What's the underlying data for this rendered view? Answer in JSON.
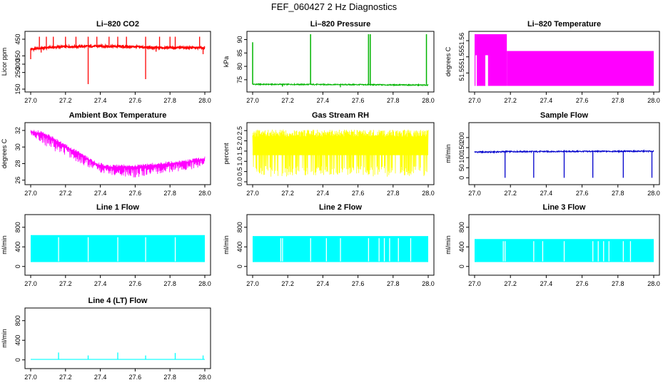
{
  "page": {
    "title": "FEF_060427  2 Hz Diagnostics"
  },
  "chart_data": [
    {
      "id": "co2",
      "type": "line",
      "title": "Li–820 CO2",
      "ylabel": "Licor ppm",
      "color": "#ff0000",
      "xlim": [
        27.0,
        28.0
      ],
      "ylim": [
        150,
        480
      ],
      "yticks": [
        150,
        250,
        300,
        350,
        450
      ],
      "ytick_labels": [
        "150",
        "250",
        "300",
        "350",
        "450"
      ],
      "xticks": [
        27.0,
        27.2,
        27.4,
        27.6,
        27.8,
        28.0
      ],
      "xtick_labels": [
        "27.0",
        "27.2",
        "27.4",
        "27.6",
        "27.8",
        "28.0"
      ],
      "series": [
        {
          "baseline": [
            [
              27.0,
              390
            ],
            [
              27.1,
              400
            ],
            [
              27.2,
              405
            ],
            [
              27.4,
              408
            ],
            [
              27.6,
              405
            ],
            [
              27.7,
              398
            ],
            [
              27.8,
              400
            ],
            [
              28.0,
              398
            ]
          ],
          "noise": 6,
          "spikes": [
            [
              27.05,
              465
            ],
            [
              27.09,
              465
            ],
            [
              27.13,
              465
            ],
            [
              27.2,
              465
            ],
            [
              27.26,
              465
            ],
            [
              27.33,
              465
            ],
            [
              27.38,
              465
            ],
            [
              27.45,
              465
            ],
            [
              27.5,
              465
            ],
            [
              27.55,
              465
            ],
            [
              27.66,
              465
            ],
            [
              27.74,
              465
            ],
            [
              27.8,
              465
            ],
            [
              27.83,
              465
            ],
            [
              27.97,
              465
            ]
          ],
          "dips": [
            [
              27.0,
              330
            ],
            [
              27.06,
              370
            ],
            [
              27.33,
              180
            ],
            [
              27.66,
              210
            ],
            [
              27.72,
              375
            ],
            [
              27.99,
              360
            ]
          ]
        }
      ]
    },
    {
      "id": "pressure",
      "type": "line",
      "title": "Li–820 Pressure",
      "ylabel": "kPa",
      "color": "#00b400",
      "xlim": [
        27.0,
        28.0
      ],
      "ylim": [
        71.5,
        92
      ],
      "yticks": [
        75,
        80,
        85,
        90
      ],
      "ytick_labels": [
        "75",
        "80",
        "85",
        "90"
      ],
      "xticks": [
        27.0,
        27.2,
        27.4,
        27.6,
        27.8,
        28.0
      ],
      "xtick_labels": [
        "27.0",
        "27.2",
        "27.4",
        "27.6",
        "27.8",
        "28.0"
      ],
      "series": [
        {
          "baseline": [
            [
              27.0,
              73.3
            ],
            [
              27.5,
              73.2
            ],
            [
              28.0,
              73.0
            ]
          ],
          "noise": 0.2,
          "spikes": [
            [
              27.0,
              89
            ],
            [
              27.33,
              92
            ],
            [
              27.66,
              92
            ],
            [
              27.67,
              92
            ],
            [
              27.99,
              92
            ]
          ],
          "dips": [
            [
              27.17,
              72.4
            ],
            [
              27.5,
              72.2
            ]
          ]
        }
      ]
    },
    {
      "id": "li820_temperature",
      "type": "area",
      "title": "Li–820 Temperature",
      "ylabel": "degrees C",
      "color": "#ff00ff",
      "xlim": [
        27.0,
        28.0
      ],
      "ylim": [
        51.545,
        51.562
      ],
      "yticks": [
        51.55,
        51.555,
        51.56
      ],
      "ytick_labels": [
        "51.55",
        "51.55",
        "51.56"
      ],
      "xticks": [
        27.0,
        27.2,
        27.4,
        27.6,
        27.8,
        28.0
      ],
      "xtick_labels": [
        "27.0",
        "27.2",
        "27.4",
        "27.6",
        "27.8",
        "28.0"
      ],
      "series": [
        {
          "blocks": [
            {
              "x0": 27.0,
              "x1": 27.18,
              "y0": 51.546,
              "y1": 51.562
            },
            {
              "x0": 27.18,
              "x1": 28.0,
              "y0": 51.546,
              "y1": 51.5568
            }
          ],
          "gaps": [
            [
              27.005,
              27.012
            ],
            [
              27.06,
              27.075
            ]
          ]
        }
      ]
    },
    {
      "id": "box_temperature",
      "type": "line",
      "title": "Ambient Box Temperature",
      "ylabel": "degrees C",
      "color": "#ff00ff",
      "xlim": [
        27.0,
        28.0
      ],
      "ylim": [
        25.8,
        32.6
      ],
      "yticks": [
        26,
        28,
        30,
        32
      ],
      "ytick_labels": [
        "26",
        "28",
        "30",
        "32"
      ],
      "xticks": [
        27.0,
        27.2,
        27.4,
        27.6,
        27.8,
        28.0
      ],
      "xtick_labels": [
        "27.0",
        "27.2",
        "27.4",
        "27.6",
        "27.8",
        "28.0"
      ],
      "series": [
        {
          "upper": [
            [
              27.0,
              32.1
            ],
            [
              27.06,
              32.0
            ],
            [
              27.1,
              31.6
            ],
            [
              27.2,
              30.4
            ],
            [
              27.3,
              29.2
            ],
            [
              27.38,
              28.2
            ],
            [
              27.45,
              27.9
            ],
            [
              27.6,
              27.9
            ],
            [
              27.7,
              28.1
            ],
            [
              27.8,
              28.3
            ],
            [
              27.9,
              28.5
            ],
            [
              28.0,
              28.9
            ]
          ],
          "lower": [
            [
              27.0,
              31.2
            ],
            [
              27.06,
              30.5
            ],
            [
              27.1,
              29.8
            ],
            [
              27.2,
              29.0
            ],
            [
              27.3,
              27.8
            ],
            [
              27.38,
              27.0
            ],
            [
              27.45,
              26.6
            ],
            [
              27.6,
              26.2
            ],
            [
              27.7,
              26.6
            ],
            [
              27.8,
              26.8
            ],
            [
              27.9,
              27.2
            ],
            [
              28.0,
              27.6
            ]
          ]
        }
      ]
    },
    {
      "id": "gas_rh",
      "type": "line",
      "title": "Gas Stream RH",
      "ylabel": "percent",
      "color": "#ffff00",
      "xlim": [
        27.0,
        28.0
      ],
      "ylim": [
        0,
        2.75
      ],
      "yticks": [
        0.0,
        0.5,
        1.0,
        1.5,
        2.0,
        2.5
      ],
      "ytick_labels": [
        "0.0",
        "0.5",
        "1.0",
        "1.5",
        "2.0",
        "2.5"
      ],
      "xticks": [
        27.0,
        27.2,
        27.4,
        27.6,
        27.8,
        28.0
      ],
      "xtick_labels": [
        "27.0",
        "27.2",
        "27.4",
        "27.6",
        "27.8",
        "28.0"
      ],
      "series": [
        {
          "band_top": 2.55,
          "band_bottom": 0.25,
          "core_top": 2.2,
          "core_bottom": 1.3
        }
      ]
    },
    {
      "id": "sample_flow",
      "type": "line",
      "title": "Sample Flow",
      "ylabel": "ml/min",
      "color": "#0000cc",
      "xlim": [
        27.0,
        28.0
      ],
      "ylim": [
        -20,
        260
      ],
      "yticks": [
        0,
        50,
        100,
        150,
        200
      ],
      "ytick_labels": [
        "0",
        "50",
        "100",
        "150",
        "200"
      ],
      "xticks": [
        27.0,
        27.2,
        27.4,
        27.6,
        27.8,
        28.0
      ],
      "xtick_labels": [
        "27.0",
        "27.2",
        "27.4",
        "27.6",
        "27.8",
        "28.0"
      ],
      "series": [
        {
          "baseline": [
            [
              27.0,
              128
            ],
            [
              27.1,
              128
            ],
            [
              27.18,
              130
            ],
            [
              28.0,
              132
            ]
          ],
          "noise": 3,
          "spikes": [
            [
              27.18,
              136
            ],
            [
              27.5,
              138
            ],
            [
              27.82,
              136
            ]
          ],
          "dips": [
            [
              27.17,
              0
            ],
            [
              27.33,
              0
            ],
            [
              27.5,
              0
            ],
            [
              27.66,
              0
            ],
            [
              27.83,
              0
            ],
            [
              27.99,
              0
            ]
          ]
        }
      ]
    },
    {
      "id": "line1_flow",
      "type": "area",
      "title": "Line 1 Flow",
      "ylabel": "ml/min",
      "color": "#00ffff",
      "xlim": [
        27.0,
        28.0
      ],
      "ylim": [
        -120,
        1000
      ],
      "yticks": [
        0,
        400,
        800
      ],
      "ytick_labels": [
        "0",
        "400",
        "800"
      ],
      "xticks": [
        27.0,
        27.2,
        27.4,
        27.6,
        27.8,
        28.0
      ],
      "xtick_labels": [
        "27.0",
        "27.2",
        "27.4",
        "27.6",
        "27.8",
        "28.0"
      ],
      "series": [
        {
          "top": 640,
          "bottom": 90,
          "gaps": [
            27.16,
            27.33,
            27.5,
            27.66,
            27.83
          ]
        }
      ]
    },
    {
      "id": "line2_flow",
      "type": "area",
      "title": "Line 2 Flow",
      "ylabel": "ml/min",
      "color": "#00ffff",
      "xlim": [
        27.0,
        28.0
      ],
      "ylim": [
        -120,
        1000
      ],
      "yticks": [
        0,
        400,
        800
      ],
      "ytick_labels": [
        "0",
        "400",
        "800"
      ],
      "xticks": [
        27.0,
        27.2,
        27.4,
        27.6,
        27.8,
        28.0
      ],
      "xtick_labels": [
        "27.0",
        "27.2",
        "27.4",
        "27.6",
        "27.8",
        "28.0"
      ],
      "series": [
        {
          "top": 620,
          "bottom": 90,
          "gaps": [
            27.16,
            27.17,
            27.33,
            27.42,
            27.5,
            27.66,
            27.72,
            27.75,
            27.78,
            27.83,
            27.9
          ]
        }
      ]
    },
    {
      "id": "line3_flow",
      "type": "area",
      "title": "Line 3 Flow",
      "ylabel": "ml/min",
      "color": "#00ffff",
      "xlim": [
        27.0,
        28.0
      ],
      "ylim": [
        -120,
        1000
      ],
      "yticks": [
        0,
        400,
        800
      ],
      "ytick_labels": [
        "0",
        "400",
        "800"
      ],
      "xticks": [
        27.0,
        27.2,
        27.4,
        27.6,
        27.8,
        28.0
      ],
      "xtick_labels": [
        "27.0",
        "27.2",
        "27.4",
        "27.6",
        "27.8",
        "28.0"
      ],
      "series": [
        {
          "top": 560,
          "bottom": 90,
          "gaps": [
            27.16,
            27.17,
            27.33,
            27.38,
            27.5,
            27.66,
            27.69,
            27.72,
            27.75,
            27.83,
            27.87
          ]
        }
      ]
    },
    {
      "id": "line4_flow",
      "type": "line",
      "title": "Line 4 (LT) Flow",
      "ylabel": "ml/min",
      "color": "#00ffff",
      "xlim": [
        27.0,
        28.0
      ],
      "ylim": [
        -120,
        1000
      ],
      "yticks": [
        0,
        400,
        800
      ],
      "ytick_labels": [
        "0",
        "400",
        "800"
      ],
      "xticks": [
        27.0,
        27.2,
        27.4,
        27.6,
        27.8,
        28.0
      ],
      "xtick_labels": [
        "27.0",
        "27.2",
        "27.4",
        "27.6",
        "27.8",
        "28.0"
      ],
      "series": [
        {
          "baseline": [
            [
              27.0,
              10
            ],
            [
              28.0,
              10
            ]
          ],
          "noise": 0,
          "spikes": [
            [
              27.16,
              150
            ],
            [
              27.33,
              90
            ],
            [
              27.5,
              150
            ],
            [
              27.66,
              90
            ],
            [
              27.83,
              140
            ],
            [
              27.99,
              90
            ]
          ],
          "dips": []
        }
      ]
    }
  ]
}
